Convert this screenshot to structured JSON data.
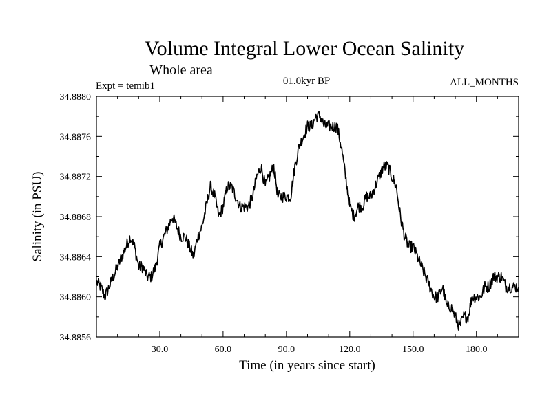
{
  "chart_data": {
    "type": "line",
    "title": "Volume Integral Lower Ocean Salinity",
    "subtitle": "Whole area",
    "expt_label": "Expt = temib1",
    "period_label": "01.0kyr BP",
    "months_label": "ALL_MONTHS",
    "xlabel": "Time (in years since start)",
    "ylabel": "Salinity (in PSU)",
    "xlim": [
      0,
      200
    ],
    "ylim": [
      34.8856,
      34.888
    ],
    "x_ticks": [
      30,
      60,
      90,
      120,
      150,
      180
    ],
    "x_tick_labels": [
      "30.0",
      "60.0",
      "90.0",
      "120.0",
      "150.0",
      "180.0"
    ],
    "y_ticks": [
      34.8856,
      34.886,
      34.8864,
      34.8868,
      34.8872,
      34.8876,
      34.888
    ],
    "y_tick_labels": [
      "34.8856",
      "34.8860",
      "34.8864",
      "34.8868",
      "34.8872",
      "34.8876",
      "34.8880"
    ],
    "series": [
      {
        "name": "Salinity",
        "x": [
          0,
          2,
          4,
          6,
          8,
          10,
          12,
          14,
          16,
          18,
          20,
          22,
          24,
          26,
          28,
          30,
          32,
          34,
          36,
          38,
          40,
          42,
          44,
          46,
          48,
          50,
          52,
          54,
          56,
          58,
          60,
          62,
          64,
          66,
          68,
          70,
          72,
          74,
          76,
          78,
          80,
          82,
          84,
          86,
          88,
          90,
          92,
          94,
          96,
          98,
          100,
          102,
          104,
          106,
          108,
          110,
          112,
          114,
          116,
          118,
          120,
          122,
          124,
          126,
          128,
          130,
          132,
          134,
          136,
          138,
          140,
          142,
          144,
          146,
          148,
          150,
          152,
          154,
          156,
          158,
          160,
          162,
          164,
          166,
          168,
          170,
          172,
          174,
          176,
          178,
          180,
          182,
          184,
          186,
          188,
          190,
          192,
          194,
          196,
          198,
          200
        ],
        "values": [
          34.88615,
          34.8861,
          34.886,
          34.8861,
          34.8862,
          34.8863,
          34.8864,
          34.8865,
          34.8866,
          34.8865,
          34.8863,
          34.8863,
          34.8862,
          34.8862,
          34.8863,
          34.8865,
          34.8866,
          34.8867,
          34.8868,
          34.8867,
          34.8866,
          34.8866,
          34.8865,
          34.8864,
          34.8866,
          34.8867,
          34.8869,
          34.8871,
          34.887,
          34.8868,
          34.8869,
          34.8871,
          34.8871,
          34.887,
          34.8869,
          34.8869,
          34.8869,
          34.887,
          34.8872,
          34.8873,
          34.8871,
          34.8872,
          34.8873,
          34.887,
          34.887,
          34.887,
          34.887,
          34.8873,
          34.8875,
          34.8876,
          34.8877,
          34.8877,
          34.8878,
          34.8878,
          34.8877,
          34.8877,
          34.8877,
          34.8877,
          34.8875,
          34.8872,
          34.8869,
          34.8868,
          34.8869,
          34.8869,
          34.887,
          34.887,
          34.8871,
          34.8872,
          34.8873,
          34.8873,
          34.8872,
          34.8871,
          34.8868,
          34.8866,
          34.8865,
          34.8865,
          34.8864,
          34.8863,
          34.8862,
          34.8861,
          34.886,
          34.886,
          34.8861,
          34.8859,
          34.8859,
          34.8858,
          34.8857,
          34.8858,
          34.8858,
          34.886,
          34.886,
          34.886,
          34.8861,
          34.8861,
          34.8862,
          34.8862,
          34.8862,
          34.8861,
          34.8861,
          34.8861,
          34.8861
        ]
      }
    ]
  }
}
